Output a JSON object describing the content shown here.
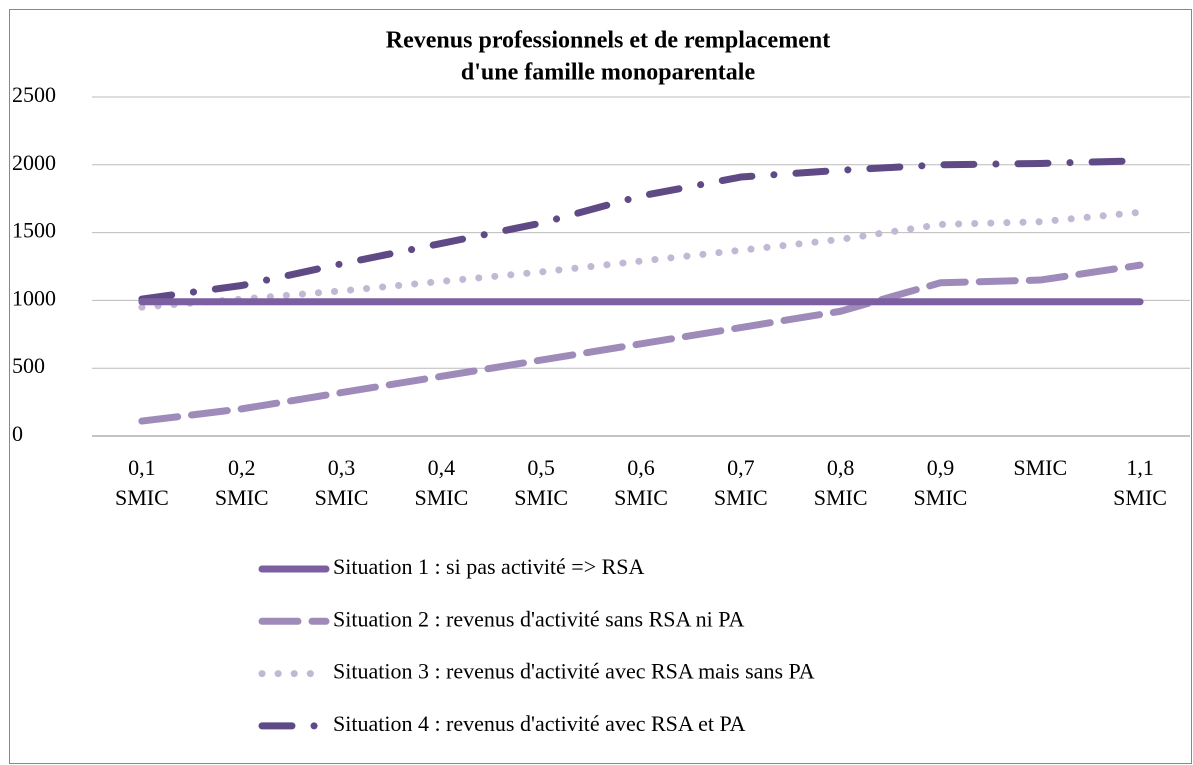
{
  "chart_data": {
    "type": "line",
    "title": [
      "Revenus professionnels et de remplacement",
      "d'une famille monoparentale"
    ],
    "categories": [
      "0,1 SMIC",
      "0,2 SMIC",
      "0,3 SMIC",
      "0,4 SMIC",
      "0,5 SMIC",
      "0,6 SMIC",
      "0,7 SMIC",
      "0,8 SMIC",
      "0,9 SMIC",
      "SMIC",
      "1,1 SMIC"
    ],
    "series": [
      {
        "name": "Situation 1 : si pas activité => RSA",
        "color": "#7b5fa0",
        "dash": "solid",
        "values": [
          990,
          990,
          990,
          990,
          990,
          990,
          990,
          990,
          990,
          990,
          990
        ]
      },
      {
        "name": "Situation 2 : revenus d'activité sans RSA ni PA",
        "color": "#9f8bb9",
        "dash": "dash",
        "values": [
          110,
          200,
          320,
          440,
          560,
          680,
          800,
          920,
          1130,
          1150,
          1260
        ]
      },
      {
        "name": "Situation 3 : revenus d'activité avec RSA mais sans PA",
        "color": "#c3b8d4",
        "dash": "dot",
        "values": [
          950,
          1010,
          1070,
          1140,
          1210,
          1290,
          1370,
          1450,
          1560,
          1580,
          1650
        ]
      },
      {
        "name": "Situation 4 : revenus d'activité avec RSA et PA",
        "color": "#5f4a86",
        "dash": "dashdot",
        "values": [
          1010,
          1110,
          1270,
          1420,
          1570,
          1770,
          1910,
          1960,
          2000,
          2010,
          2030
        ]
      }
    ],
    "ylim": [
      0,
      2500
    ],
    "yticks": [
      0,
      500,
      1000,
      1500,
      2000,
      2500
    ],
    "grid": true,
    "legend": "bottom"
  }
}
